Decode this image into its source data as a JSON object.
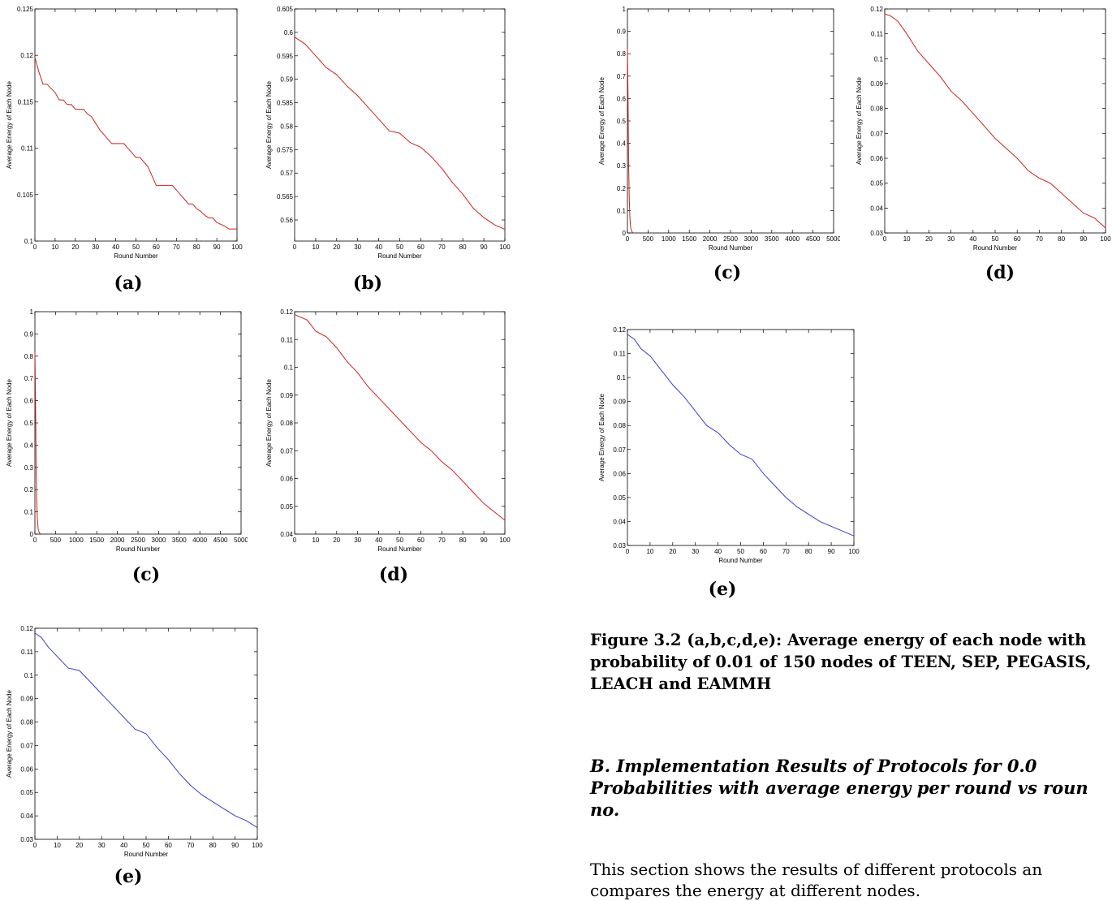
{
  "chart_data": [
    {
      "id": "a1",
      "type": "line",
      "ylabel": "Average Energy of Each Node",
      "xlabel": "Round Number",
      "panel": "(a)",
      "xlim": [
        0,
        100
      ],
      "ylim": [
        0.1,
        0.125
      ],
      "xticks": [
        0,
        10,
        20,
        30,
        40,
        50,
        60,
        70,
        80,
        90,
        100
      ],
      "xtick_labels": [
        "0",
        "10",
        "20",
        "30",
        "40",
        "50",
        "60",
        "70",
        "80",
        "90",
        "100"
      ],
      "yticks": [
        0.1,
        0.105,
        0.11,
        0.115,
        0.12,
        0.125
      ],
      "ytick_labels": [
        "0.1",
        "0.105",
        "0.11",
        "0.115",
        "0.12",
        "0.125"
      ],
      "series": [
        {
          "color": "#cc2222",
          "x": [
            0,
            2,
            4,
            6,
            10,
            12,
            14,
            16,
            18,
            20,
            22,
            24,
            26,
            28,
            30,
            32,
            34,
            36,
            38,
            40,
            44,
            46,
            48,
            50,
            52,
            54,
            56,
            58,
            60,
            62,
            64,
            66,
            68,
            70,
            72,
            74,
            76,
            78,
            80,
            82,
            84,
            86,
            88,
            90,
            92,
            94,
            96,
            100
          ],
          "y": [
            0.1198,
            0.1182,
            0.1169,
            0.1169,
            0.116,
            0.1152,
            0.1152,
            0.1147,
            0.1147,
            0.1142,
            0.1142,
            0.1142,
            0.1137,
            0.1134,
            0.1127,
            0.112,
            0.1115,
            0.111,
            0.1105,
            0.1105,
            0.1105,
            0.11,
            0.1095,
            0.109,
            0.109,
            0.1085,
            0.108,
            0.107,
            0.106,
            0.106,
            0.106,
            0.106,
            0.106,
            0.1055,
            0.105,
            0.1045,
            0.104,
            0.104,
            0.1035,
            0.1032,
            0.1028,
            0.1025,
            0.1025,
            0.102,
            0.1018,
            0.1016,
            0.1013,
            0.1013
          ]
        }
      ]
    },
    {
      "id": "b1",
      "type": "line",
      "ylabel": "Average Energy of Each Node",
      "xlabel": "Round Number",
      "panel": "(b)",
      "xlim": [
        0,
        100
      ],
      "ylim": [
        0.5555,
        0.605
      ],
      "xticks": [
        0,
        10,
        20,
        30,
        40,
        50,
        60,
        70,
        80,
        90,
        100
      ],
      "xtick_labels": [
        "0",
        "10",
        "20",
        "30",
        "40",
        "50",
        "60",
        "70",
        "80",
        "90",
        "100"
      ],
      "yticks": [
        0.56,
        0.565,
        0.57,
        0.575,
        0.58,
        0.585,
        0.59,
        0.595,
        0.6,
        0.605
      ],
      "ytick_labels": [
        "0.56",
        "0.565",
        "0.57",
        "0.575",
        "0.58",
        "0.585",
        "0.59",
        "0.595",
        "0.6",
        "0.605"
      ],
      "series": [
        {
          "color": "#cc2222",
          "x": [
            0,
            5,
            10,
            15,
            20,
            25,
            30,
            35,
            40,
            45,
            50,
            55,
            60,
            65,
            70,
            75,
            80,
            85,
            90,
            95,
            100
          ],
          "y": [
            0.599,
            0.5975,
            0.595,
            0.5925,
            0.591,
            0.5885,
            0.5865,
            0.584,
            0.5815,
            0.579,
            0.5785,
            0.5765,
            0.5755,
            0.5735,
            0.571,
            0.568,
            0.5655,
            0.5625,
            0.5605,
            0.559,
            0.558
          ]
        }
      ]
    },
    {
      "id": "c1",
      "type": "line",
      "ylabel": "Average Energy of Each Node",
      "xlabel": "Round Number",
      "panel": "(c)",
      "xlim": [
        0,
        5000
      ],
      "ylim": [
        0,
        1
      ],
      "xticks": [
        0,
        500,
        1000,
        1500,
        2000,
        2500,
        3000,
        3500,
        4000,
        4500,
        5000
      ],
      "xtick_labels": [
        "0",
        "500",
        "1000",
        "1500",
        "2000",
        "2500",
        "3000",
        "3500",
        "4000",
        "4500",
        "5000"
      ],
      "yticks": [
        0,
        0.1,
        0.2,
        0.3,
        0.4,
        0.5,
        0.6,
        0.7,
        0.8,
        0.9,
        1
      ],
      "ytick_labels": [
        "0",
        "0.1",
        "0.2",
        "0.3",
        "0.4",
        "0.5",
        "0.6",
        "0.7",
        "0.8",
        "0.9",
        "1"
      ],
      "series": [
        {
          "color": "#cc2222",
          "x": [
            0,
            15,
            30,
            45,
            60,
            80,
            110,
            140
          ],
          "y": [
            0.82,
            0.6,
            0.3,
            0.15,
            0.07,
            0.02,
            0.005,
            0
          ]
        }
      ]
    },
    {
      "id": "d1",
      "type": "line",
      "ylabel": "Average Energy of Each Node",
      "xlabel": "Round Number",
      "panel": "(d)",
      "xlim": [
        0,
        100
      ],
      "ylim": [
        0.04,
        0.12
      ],
      "xticks": [
        0,
        10,
        20,
        30,
        40,
        50,
        60,
        70,
        80,
        90,
        100
      ],
      "xtick_labels": [
        "0",
        "10",
        "20",
        "30",
        "40",
        "50",
        "60",
        "70",
        "80",
        "90",
        "100"
      ],
      "yticks": [
        0.04,
        0.05,
        0.06,
        0.07,
        0.08,
        0.09,
        0.1,
        0.11,
        0.12
      ],
      "ytick_labels": [
        "0.04",
        "0.05",
        "0.06",
        "0.07",
        "0.08",
        "0.09",
        "0.1",
        "0.11",
        "0.12"
      ],
      "series": [
        {
          "color": "#cc2222",
          "x": [
            0,
            3,
            6,
            10,
            15,
            20,
            25,
            30,
            35,
            40,
            45,
            50,
            55,
            60,
            65,
            70,
            75,
            80,
            85,
            90,
            95,
            100
          ],
          "y": [
            0.119,
            0.118,
            0.117,
            0.113,
            0.111,
            0.107,
            0.102,
            0.098,
            0.093,
            0.089,
            0.085,
            0.081,
            0.077,
            0.073,
            0.07,
            0.066,
            0.063,
            0.059,
            0.055,
            0.051,
            0.048,
            0.045
          ]
        }
      ]
    },
    {
      "id": "e1",
      "type": "line",
      "ylabel": "Average Energy of Each Node",
      "xlabel": "Round Number",
      "panel": "(e)",
      "xlim": [
        0,
        100
      ],
      "ylim": [
        0.03,
        0.12
      ],
      "xticks": [
        0,
        10,
        20,
        30,
        40,
        50,
        60,
        70,
        80,
        90,
        100
      ],
      "xtick_labels": [
        "0",
        "10",
        "20",
        "30",
        "40",
        "50",
        "60",
        "70",
        "80",
        "90",
        "100"
      ],
      "yticks": [
        0.03,
        0.04,
        0.05,
        0.06,
        0.07,
        0.08,
        0.09,
        0.1,
        0.11,
        0.12
      ],
      "ytick_labels": [
        "0.03",
        "0.04",
        "0.05",
        "0.06",
        "0.07",
        "0.08",
        "0.09",
        "0.1",
        "0.11",
        "0.12"
      ],
      "series": [
        {
          "color": "#3b3bcc",
          "x": [
            0,
            3,
            6,
            10,
            15,
            20,
            25,
            30,
            35,
            40,
            45,
            50,
            55,
            60,
            65,
            70,
            75,
            80,
            85,
            90,
            95,
            100
          ],
          "y": [
            0.118,
            0.116,
            0.112,
            0.108,
            0.103,
            0.102,
            0.097,
            0.092,
            0.087,
            0.082,
            0.077,
            0.075,
            0.069,
            0.064,
            0.058,
            0.053,
            0.049,
            0.046,
            0.043,
            0.04,
            0.038,
            0.035
          ]
        }
      ]
    },
    {
      "id": "c2",
      "type": "line",
      "ylabel": "Average Energy of Each Node",
      "xlabel": "Round Number",
      "panel": "(c)",
      "xlim": [
        0,
        5000
      ],
      "ylim": [
        0,
        1
      ],
      "xticks": [
        0,
        500,
        1000,
        1500,
        2000,
        2500,
        3000,
        3500,
        4000,
        4500,
        5000
      ],
      "xtick_labels": [
        "0",
        "500",
        "1000",
        "1500",
        "2000",
        "2500",
        "3000",
        "3500",
        "4000",
        "4500",
        "5000"
      ],
      "yticks": [
        0,
        0.1,
        0.2,
        0.3,
        0.4,
        0.5,
        0.6,
        0.7,
        0.8,
        0.9,
        1
      ],
      "ytick_labels": [
        "0",
        "0.1",
        "0.2",
        "0.3",
        "0.4",
        "0.5",
        "0.6",
        "0.7",
        "0.8",
        "0.9",
        "1"
      ],
      "series": [
        {
          "color": "#cc2222",
          "x": [
            0,
            15,
            30,
            45,
            60,
            80,
            110,
            140
          ],
          "y": [
            0.82,
            0.6,
            0.3,
            0.15,
            0.07,
            0.02,
            0.005,
            0
          ]
        }
      ]
    },
    {
      "id": "d2",
      "type": "line",
      "ylabel": "Average Energy of Each Node",
      "xlabel": "Round Number",
      "panel": "(d)",
      "xlim": [
        0,
        100
      ],
      "ylim": [
        0.03,
        0.12
      ],
      "xticks": [
        0,
        10,
        20,
        30,
        40,
        50,
        60,
        70,
        80,
        90,
        100
      ],
      "xtick_labels": [
        "0",
        "10",
        "20",
        "30",
        "40",
        "50",
        "60",
        "70",
        "80",
        "90",
        "100"
      ],
      "yticks": [
        0.03,
        0.04,
        0.05,
        0.06,
        0.07,
        0.08,
        0.09,
        0.1,
        0.11,
        0.12
      ],
      "ytick_labels": [
        "0.03",
        "0.04",
        "0.05",
        "0.06",
        "0.07",
        "0.08",
        "0.09",
        "0.1",
        "0.11",
        "0.12"
      ],
      "series": [
        {
          "color": "#cc2222",
          "x": [
            0,
            3,
            6,
            10,
            15,
            20,
            25,
            30,
            35,
            40,
            45,
            50,
            55,
            60,
            65,
            70,
            75,
            80,
            85,
            90,
            95,
            100
          ],
          "y": [
            0.118,
            0.117,
            0.115,
            0.11,
            0.103,
            0.098,
            0.093,
            0.087,
            0.083,
            0.078,
            0.073,
            0.068,
            0.064,
            0.06,
            0.055,
            0.052,
            0.05,
            0.046,
            0.042,
            0.038,
            0.036,
            0.032
          ]
        }
      ]
    },
    {
      "id": "e2",
      "type": "line",
      "ylabel": "Average Energy of Each Node",
      "xlabel": "Round Number",
      "panel": "(e)",
      "xlim": [
        0,
        100
      ],
      "ylim": [
        0.03,
        0.12
      ],
      "xticks": [
        0,
        10,
        20,
        30,
        40,
        50,
        60,
        70,
        80,
        90,
        100
      ],
      "xtick_labels": [
        "0",
        "10",
        "20",
        "30",
        "40",
        "50",
        "60",
        "70",
        "80",
        "90",
        "100"
      ],
      "yticks": [
        0.03,
        0.04,
        0.05,
        0.06,
        0.07,
        0.08,
        0.09,
        0.1,
        0.11,
        0.12
      ],
      "ytick_labels": [
        "0.03",
        "0.04",
        "0.05",
        "0.06",
        "0.07",
        "0.08",
        "0.09",
        "0.1",
        "0.11",
        "0.12"
      ],
      "series": [
        {
          "color": "#3b3bcc",
          "x": [
            0,
            3,
            6,
            10,
            15,
            20,
            25,
            30,
            35,
            40,
            45,
            50,
            55,
            60,
            65,
            70,
            75,
            80,
            85,
            90,
            95,
            100
          ],
          "y": [
            0.118,
            0.116,
            0.112,
            0.109,
            0.103,
            0.097,
            0.092,
            0.086,
            0.08,
            0.077,
            0.072,
            0.068,
            0.066,
            0.06,
            0.055,
            0.05,
            0.046,
            0.043,
            0.04,
            0.038,
            0.036,
            0.034
          ]
        }
      ]
    }
  ],
  "text": {
    "caption": "Figure 3.2 (a,b,c,d,e): Average energy of each node with probability of 0.01 of 150 nodes of TEEN, SEP, PEGASIS, LEACH and EAMMH",
    "heading_line1": "B.  Implementation  Results  of  Protocols  for  0.0",
    "heading_line2": "Probabilities with average energy per round vs roun",
    "heading_line3": "no.",
    "body_line1": "This section shows the results of different protocols an",
    "body_line2": "compares the energy at different nodes."
  }
}
